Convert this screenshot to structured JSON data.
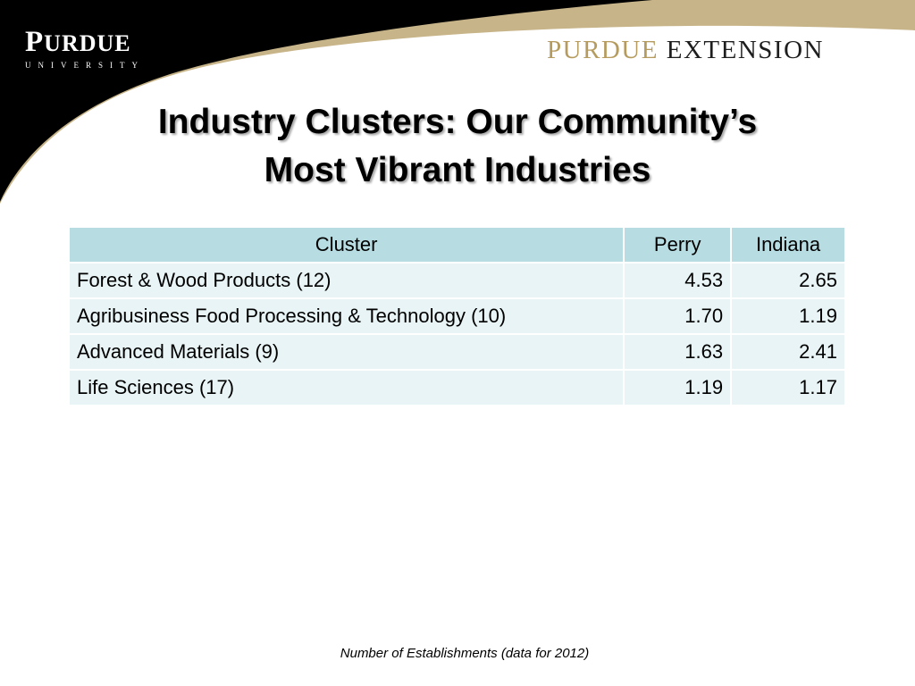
{
  "header": {
    "university_logo": {
      "word_first": "P",
      "word_rest": "URDUE",
      "subtitle": "UNIVERSITY"
    },
    "extension_logo": {
      "part1": "PURDUE",
      "part2": "EXTENSION"
    },
    "colors": {
      "black": "#000000",
      "gold": "#b59b5e"
    }
  },
  "slide": {
    "title_line1": "Industry Clusters: Our Community’s",
    "title_line2": "Most Vibrant Industries"
  },
  "table": {
    "columns": [
      "Cluster",
      "Perry",
      "Indiana"
    ],
    "rows": [
      [
        "Forest & Wood Products (12)",
        "4.53",
        "2.65"
      ],
      [
        "Agribusiness Food Processing & Technology (10)",
        "1.70",
        "1.19"
      ],
      [
        "Advanced Materials (9)",
        "1.63",
        "2.41"
      ],
      [
        "Life Sciences (17)",
        "1.19",
        "1.17"
      ]
    ],
    "colors": {
      "header": "#b7dde2",
      "row": "#e8f4f5"
    }
  },
  "footnote": "Number of Establishments (data for 2012)"
}
